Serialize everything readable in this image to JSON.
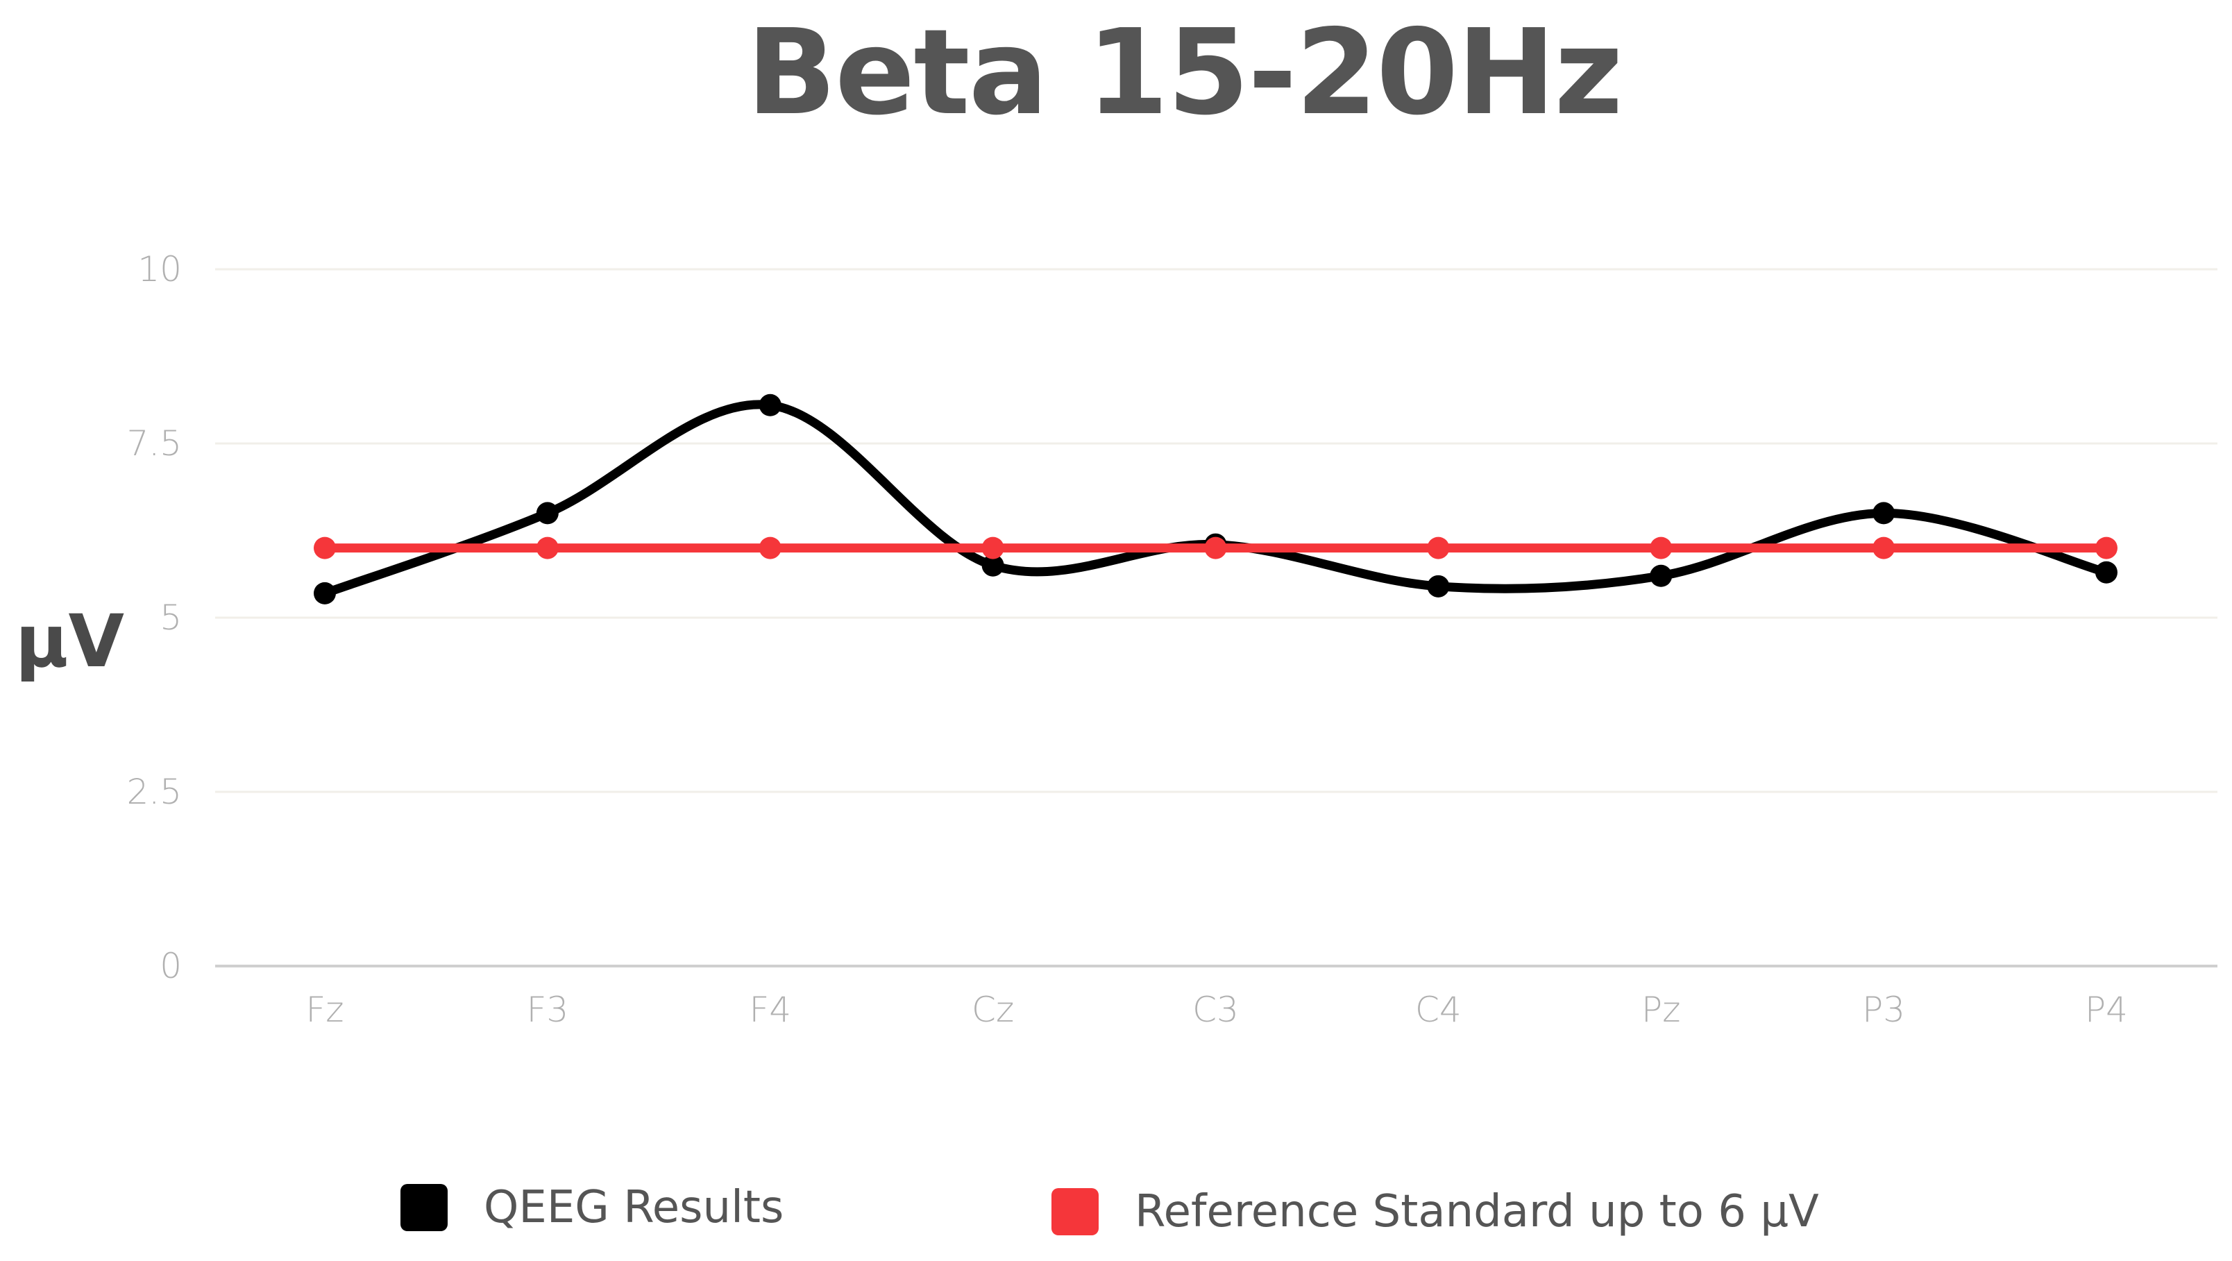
{
  "chart_data": {
    "type": "line",
    "title": "Beta 15-20Hz",
    "xlabel": "",
    "ylabel": "µV",
    "categories": [
      "Fz",
      "F3",
      "F4",
      "Cz",
      "C3",
      "C4",
      "Pz",
      "P3",
      "P4"
    ],
    "yticks": [
      "0",
      "2.5",
      "5",
      "7.5",
      "10"
    ],
    "ylim": [
      0,
      10
    ],
    "grid": true,
    "legend_position": "bottom",
    "series": [
      {
        "name": "QEEG Results",
        "color": "#000000",
        "smooth": true,
        "values": [
          5.35,
          6.5,
          8.05,
          5.75,
          6.05,
          5.45,
          5.6,
          6.5,
          5.65
        ]
      },
      {
        "name": "Reference Standard up to 6 µV",
        "color": "#f5363a",
        "smooth": false,
        "values": [
          6,
          6,
          6,
          6,
          6,
          6,
          6,
          6,
          6
        ]
      }
    ]
  }
}
